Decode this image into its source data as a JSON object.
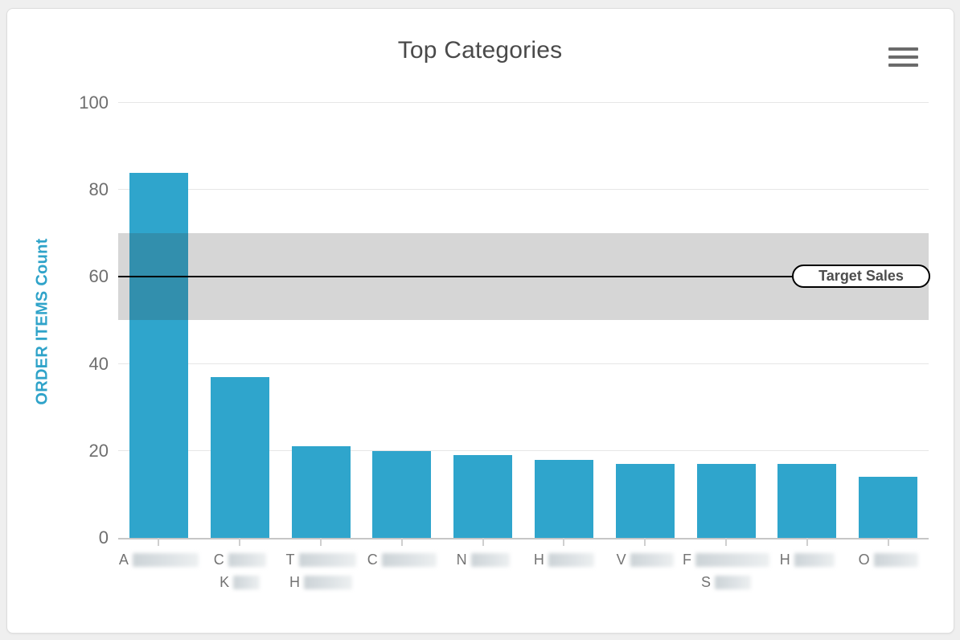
{
  "header": {
    "title": "Top Categories",
    "menu_icon": "hamburger-icon"
  },
  "chart_data": {
    "type": "bar",
    "title": "Top Categories",
    "xlabel": "",
    "ylabel": "ORDER ITEMS Count",
    "ylim": [
      0,
      100
    ],
    "yticks": [
      0,
      20,
      40,
      60,
      80,
      100
    ],
    "grid": true,
    "legend_position": "none",
    "bar_color": "#2fa5cc",
    "values": [
      84,
      37,
      21,
      20,
      19,
      18,
      17,
      17,
      17,
      14
    ],
    "categories": [
      {
        "redacted": true,
        "label_lines": [
          {
            "initial": "A",
            "blur_width": 82
          }
        ]
      },
      {
        "redacted": true,
        "label_lines": [
          {
            "initial": "C",
            "blur_width": 47
          },
          {
            "initial": "K",
            "blur_width": 33
          }
        ]
      },
      {
        "redacted": true,
        "label_lines": [
          {
            "initial": "T",
            "blur_width": 71
          },
          {
            "initial": "H",
            "blur_width": 60
          }
        ]
      },
      {
        "redacted": true,
        "label_lines": [
          {
            "initial": "C",
            "blur_width": 68
          }
        ]
      },
      {
        "redacted": true,
        "label_lines": [
          {
            "initial": "N",
            "blur_width": 48
          }
        ]
      },
      {
        "redacted": true,
        "label_lines": [
          {
            "initial": "H",
            "blur_width": 57
          }
        ]
      },
      {
        "redacted": true,
        "label_lines": [
          {
            "initial": "V",
            "blur_width": 54
          }
        ]
      },
      {
        "redacted": true,
        "label_lines": [
          {
            "initial": "F",
            "blur_width": 92
          },
          {
            "initial": "S",
            "blur_width": 45
          }
        ]
      },
      {
        "redacted": true,
        "label_lines": [
          {
            "initial": "H",
            "blur_width": 50
          }
        ]
      },
      {
        "redacted": true,
        "label_lines": [
          {
            "initial": "O",
            "blur_width": 55
          }
        ]
      }
    ],
    "plot_band": {
      "from": 50,
      "to": 70,
      "color": "#d6d6d6"
    },
    "plot_line": {
      "value": 60,
      "color": "#000000",
      "label": "Target Sales"
    },
    "note": "category names are blurred in the source screenshot; only initial letters visible"
  },
  "colors": {
    "bar": "#2fa5cc",
    "band": "#d6d6d6",
    "axis_title": "#2fa3c9",
    "tick_label": "#6e6e6e",
    "title": "#4a4a4a",
    "page_background": "#efefef",
    "card_background": "#ffffff"
  }
}
